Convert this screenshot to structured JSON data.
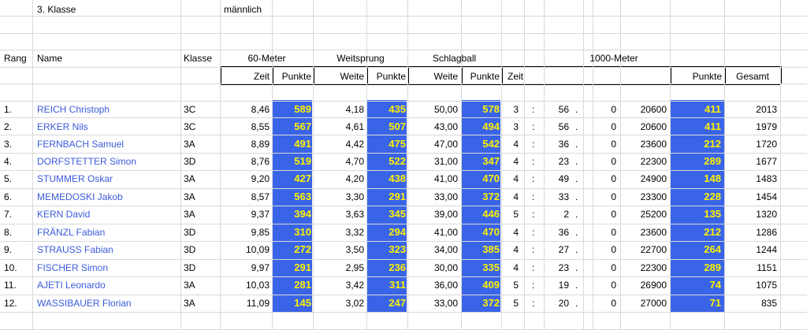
{
  "sheet": {
    "klasse_label": "3. Klasse",
    "gender": "männlich"
  },
  "headers": {
    "rang": "Rang",
    "name": "Name",
    "klasse": "Klasse",
    "sixty": "60-Meter",
    "weitsprung": "Weitsprung",
    "schlagball": "Schlagball",
    "thousand": "1000-Meter",
    "zeit": "Zeit",
    "punkte": "Punkte",
    "weite": "Weite",
    "gesamt": "Gesamt"
  },
  "rows": [
    {
      "rang": "1.",
      "name": "REICH Christoph",
      "klasse": "3C",
      "t60": "8,46",
      "p60": "589",
      "weit": "4,18",
      "pweit": "435",
      "ball": "50,00",
      "pball": "578",
      "min": "3",
      "sec": "56",
      "frac": "0",
      "val": "20600",
      "p1000": "411",
      "gesamt": "2013"
    },
    {
      "rang": "2.",
      "name": "ERKER Nils",
      "klasse": "3C",
      "t60": "8,55",
      "p60": "567",
      "weit": "4,61",
      "pweit": "507",
      "ball": "43,00",
      "pball": "494",
      "min": "3",
      "sec": "56",
      "frac": "0",
      "val": "20600",
      "p1000": "411",
      "gesamt": "1979"
    },
    {
      "rang": "3.",
      "name": "FERNBACH Samuel",
      "klasse": "3A",
      "t60": "8,89",
      "p60": "491",
      "weit": "4,42",
      "pweit": "475",
      "ball": "47,00",
      "pball": "542",
      "min": "4",
      "sec": "36",
      "frac": "0",
      "val": "23600",
      "p1000": "212",
      "gesamt": "1720"
    },
    {
      "rang": "4.",
      "name": "DORFSTETTER Simon",
      "klasse": "3D",
      "t60": "8,76",
      "p60": "519",
      "weit": "4,70",
      "pweit": "522",
      "ball": "31,00",
      "pball": "347",
      "min": "4",
      "sec": "23",
      "frac": "0",
      "val": "22300",
      "p1000": "289",
      "gesamt": "1677"
    },
    {
      "rang": "5.",
      "name": "STUMMER Oskar",
      "klasse": "3A",
      "t60": "9,20",
      "p60": "427",
      "weit": "4,20",
      "pweit": "438",
      "ball": "41,00",
      "pball": "470",
      "min": "4",
      "sec": "49",
      "frac": "0",
      "val": "24900",
      "p1000": "148",
      "gesamt": "1483"
    },
    {
      "rang": "6.",
      "name": "MEMEDOSKI Jakob",
      "klasse": "3A",
      "t60": "8,57",
      "p60": "563",
      "weit": "3,30",
      "pweit": "291",
      "ball": "33,00",
      "pball": "372",
      "min": "4",
      "sec": "33",
      "frac": "0",
      "val": "23300",
      "p1000": "228",
      "gesamt": "1454"
    },
    {
      "rang": "7.",
      "name": "KERN David",
      "klasse": "3A",
      "t60": "9,37",
      "p60": "394",
      "weit": "3,63",
      "pweit": "345",
      "ball": "39,00",
      "pball": "446",
      "min": "5",
      "sec": "2",
      "frac": "0",
      "val": "25200",
      "p1000": "135",
      "gesamt": "1320"
    },
    {
      "rang": "8.",
      "name": "FRÄNZL Fabian",
      "klasse": "3D",
      "t60": "9,85",
      "p60": "310",
      "weit": "3,32",
      "pweit": "294",
      "ball": "41,00",
      "pball": "470",
      "min": "4",
      "sec": "36",
      "frac": "0",
      "val": "23600",
      "p1000": "212",
      "gesamt": "1286"
    },
    {
      "rang": "9.",
      "name": "STRAUSS Fabian",
      "klasse": "3D",
      "t60": "10,09",
      "p60": "272",
      "weit": "3,50",
      "pweit": "323",
      "ball": "34,00",
      "pball": "385",
      "min": "4",
      "sec": "27",
      "frac": "0",
      "val": "22700",
      "p1000": "264",
      "gesamt": "1244"
    },
    {
      "rang": "10.",
      "name": "FISCHER Simon",
      "klasse": "3D",
      "t60": "9,97",
      "p60": "291",
      "weit": "2,95",
      "pweit": "236",
      "ball": "30,00",
      "pball": "335",
      "min": "4",
      "sec": "23",
      "frac": "0",
      "val": "22300",
      "p1000": "289",
      "gesamt": "1151"
    },
    {
      "rang": "11.",
      "name": "AJETI Leonardo",
      "klasse": "3A",
      "t60": "10,03",
      "p60": "281",
      "weit": "3,42",
      "pweit": "311",
      "ball": "36,00",
      "pball": "409",
      "min": "5",
      "sec": "19",
      "frac": "0",
      "val": "26900",
      "p1000": "74",
      "gesamt": "1075"
    },
    {
      "rang": "12.",
      "name": "WASSIBAUER Florian",
      "klasse": "3A",
      "t60": "11,09",
      "p60": "145",
      "weit": "3,02",
      "pweit": "247",
      "ball": "33,00",
      "pball": "372",
      "min": "5",
      "sec": "20",
      "frac": "0",
      "val": "27000",
      "p1000": "71",
      "gesamt": "835"
    }
  ],
  "separators": {
    "colon": ":",
    "dot": "."
  },
  "colors": {
    "points_bg": "#3a64e8",
    "points_text": "#fff200",
    "name_text": "#3b5bdb",
    "grid": "#d9d9d9"
  }
}
